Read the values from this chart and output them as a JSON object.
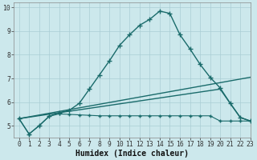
{
  "title": "",
  "xlabel": "Humidex (Indice chaleur)",
  "ylabel": "",
  "bg_color": "#cce8ec",
  "line_color": "#1a6b6b",
  "grid_color": "#aacdd4",
  "xlim": [
    -0.5,
    23
  ],
  "ylim": [
    4.5,
    10.2
  ],
  "yticks": [
    5,
    6,
    7,
    8,
    9,
    10
  ],
  "xticks": [
    0,
    1,
    2,
    3,
    4,
    5,
    6,
    7,
    8,
    9,
    10,
    11,
    12,
    13,
    14,
    15,
    16,
    17,
    18,
    19,
    20,
    21,
    22,
    23
  ],
  "series": [
    {
      "x": [
        0,
        1,
        2,
        3,
        4,
        5,
        6,
        7,
        8,
        9,
        10,
        11,
        12,
        13,
        14,
        15,
        16,
        17,
        18,
        19,
        20,
        21,
        22,
        23
      ],
      "y": [
        5.3,
        4.65,
        5.0,
        5.4,
        5.55,
        5.65,
        5.95,
        6.55,
        7.15,
        7.75,
        8.4,
        8.85,
        9.25,
        9.5,
        9.85,
        9.75,
        8.85,
        8.25,
        7.6,
        7.05,
        6.6,
        5.95,
        5.35,
        5.2
      ],
      "marker": "+",
      "markersize": 4,
      "linewidth": 1.0,
      "has_marker": true
    },
    {
      "x": [
        0,
        23
      ],
      "y": [
        5.3,
        7.05
      ],
      "marker": null,
      "markersize": 0,
      "linewidth": 1.0,
      "has_marker": false
    },
    {
      "x": [
        0,
        20,
        21,
        22,
        23
      ],
      "y": [
        5.3,
        6.55,
        5.95,
        5.35,
        5.2
      ],
      "marker": null,
      "markersize": 0,
      "linewidth": 1.0,
      "has_marker": false
    },
    {
      "x": [
        0,
        1,
        2,
        3,
        4,
        5,
        6,
        7,
        8,
        9,
        10,
        11,
        12,
        13,
        14,
        15,
        16,
        17,
        18,
        19,
        20,
        21,
        22,
        23
      ],
      "y": [
        5.3,
        4.65,
        5.0,
        5.4,
        5.5,
        5.48,
        5.46,
        5.44,
        5.42,
        5.42,
        5.42,
        5.42,
        5.42,
        5.42,
        5.42,
        5.42,
        5.42,
        5.42,
        5.42,
        5.42,
        5.2,
        5.2,
        5.2,
        5.2
      ],
      "marker": "+",
      "markersize": 3,
      "linewidth": 0.8,
      "has_marker": true
    }
  ]
}
